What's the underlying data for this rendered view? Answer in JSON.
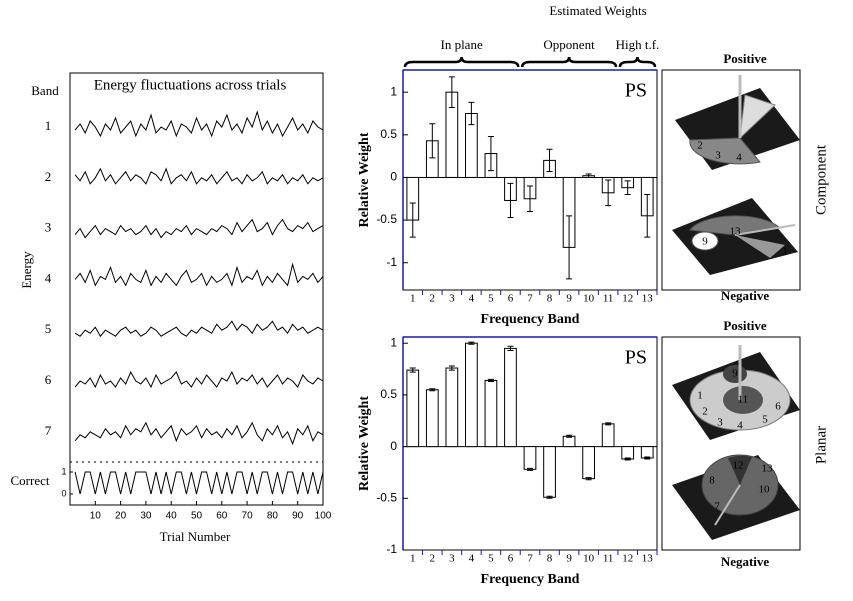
{
  "figure": {
    "title": "Estimated Weights",
    "panels": [
      {
        "side_label": "Component",
        "top_label": "Positive",
        "bottom_label": "Negative",
        "top_numbers": [
          "2",
          "3",
          "4"
        ],
        "bottom_numbers": [
          "9",
          "13",
          "1"
        ]
      },
      {
        "side_label": "Planar",
        "top_label": "Positive",
        "bottom_label": "Negative",
        "top_numbers": [
          "9",
          "11",
          "1",
          "2",
          "3",
          "4",
          "5",
          "6"
        ],
        "bottom_numbers": [
          "12",
          "13",
          "8",
          "10",
          "7"
        ]
      }
    ]
  },
  "chart_data": [
    {
      "type": "line",
      "title": "Energy fluctuations across trials",
      "band_label": "Band",
      "y_label": "Energy",
      "x_label": "Trial Number",
      "xlim": [
        0,
        100
      ],
      "xticks": [
        10,
        20,
        30,
        40,
        50,
        60,
        70,
        80,
        90,
        100
      ],
      "ylim": [
        0,
        10
      ],
      "x": [
        2,
        4,
        6,
        8,
        10,
        12,
        14,
        16,
        18,
        20,
        22,
        24,
        26,
        28,
        30,
        32,
        34,
        36,
        38,
        40,
        42,
        44,
        46,
        48,
        50,
        52,
        54,
        56,
        58,
        60,
        62,
        64,
        66,
        68,
        70,
        72,
        74,
        76,
        78,
        80,
        82,
        84,
        86,
        88,
        90,
        92,
        94,
        96,
        98,
        100
      ],
      "series": [
        {
          "name": "1",
          "color": "#000000",
          "values": [
            4,
            6,
            3,
            7,
            5,
            2,
            6,
            4,
            8,
            3,
            5,
            7,
            2,
            6,
            4,
            9,
            3,
            5,
            4,
            7,
            2,
            6,
            5,
            3,
            8,
            4,
            6,
            2,
            7,
            5,
            9,
            4,
            6,
            3,
            8,
            5,
            10,
            4,
            7,
            3,
            6,
            2,
            5,
            8,
            4,
            6,
            3,
            7,
            5,
            4
          ]
        },
        {
          "name": "2",
          "color": "#000000",
          "values": [
            6,
            4,
            7,
            3,
            5,
            8,
            4,
            6,
            3,
            5,
            7,
            4,
            6,
            5,
            3,
            7,
            6,
            4,
            8,
            3,
            5,
            6,
            4,
            7,
            3,
            5,
            4,
            6,
            3,
            5,
            7,
            4,
            5,
            3,
            6,
            4,
            5,
            7,
            3,
            5,
            4,
            6,
            3,
            5,
            4,
            6,
            3,
            5,
            4,
            5
          ]
        },
        {
          "name": "3",
          "color": "#000000",
          "values": [
            3,
            5,
            2,
            4,
            6,
            3,
            5,
            4,
            3,
            6,
            4,
            5,
            3,
            4,
            6,
            3,
            5,
            2,
            4,
            3,
            5,
            4,
            6,
            3,
            5,
            4,
            3,
            5,
            4,
            6,
            5,
            3,
            7,
            4,
            6,
            8,
            4,
            5,
            7,
            3,
            6,
            8,
            5,
            4,
            6,
            5,
            7,
            4,
            5,
            6
          ]
        },
        {
          "name": "4",
          "color": "#000000",
          "values": [
            5,
            7,
            4,
            8,
            3,
            6,
            5,
            9,
            4,
            6,
            3,
            7,
            5,
            4,
            8,
            3,
            6,
            4,
            7,
            5,
            3,
            6,
            8,
            4,
            5,
            7,
            3,
            6,
            4,
            5,
            7,
            3,
            9,
            4,
            6,
            5,
            8,
            3,
            6,
            4,
            7,
            5,
            3,
            10,
            4,
            6,
            5,
            7,
            4,
            6
          ]
        },
        {
          "name": "5",
          "color": "#000000",
          "values": [
            4,
            3,
            5,
            4,
            6,
            3,
            5,
            4,
            3,
            5,
            6,
            4,
            5,
            3,
            4,
            6,
            5,
            3,
            4,
            5,
            6,
            4,
            3,
            5,
            4,
            6,
            5,
            4,
            7,
            5,
            6,
            8,
            5,
            7,
            6,
            4,
            7,
            5,
            6,
            8,
            5,
            6,
            4,
            7,
            5,
            6,
            4,
            5,
            6,
            5
          ]
        },
        {
          "name": "6",
          "color": "#000000",
          "values": [
            3,
            5,
            4,
            6,
            3,
            7,
            4,
            5,
            3,
            6,
            4,
            8,
            5,
            4,
            6,
            3,
            7,
            4,
            5,
            6,
            8,
            4,
            5,
            3,
            6,
            4,
            7,
            5,
            3,
            6,
            5,
            8,
            4,
            6,
            5,
            7,
            4,
            6,
            3,
            5,
            7,
            4,
            6,
            5,
            3,
            7,
            5,
            4,
            6,
            5
          ]
        },
        {
          "name": "7",
          "color": "#000000",
          "values": [
            2,
            4,
            3,
            5,
            4,
            3,
            6,
            4,
            5,
            3,
            7,
            4,
            6,
            5,
            8,
            4,
            6,
            3,
            5,
            7,
            2,
            6,
            4,
            5,
            7,
            3,
            6,
            4,
            5,
            3,
            6,
            4,
            7,
            3,
            5,
            8,
            4,
            2,
            6,
            4,
            7,
            3,
            5,
            1,
            6,
            4,
            7,
            2,
            5,
            4
          ]
        }
      ],
      "correct": {
        "name": "Correct",
        "yticks": [
          0,
          1
        ],
        "values": [
          1,
          0,
          1,
          1,
          0,
          1,
          0,
          1,
          1,
          0,
          1,
          0,
          1,
          1,
          1,
          0,
          1,
          0,
          1,
          0,
          1,
          1,
          0,
          1,
          0,
          1,
          1,
          0,
          1,
          0,
          1,
          0,
          1,
          1,
          0,
          1,
          0,
          1,
          1,
          0,
          1,
          0,
          1,
          1,
          0,
          1,
          0,
          1,
          0,
          1
        ]
      }
    },
    {
      "type": "bar",
      "annotation": "PS",
      "y_label": "Relative Weight",
      "x_label": "Frequency Band",
      "color": "#ffffff",
      "categories": [
        "1",
        "2",
        "3",
        "4",
        "5",
        "6",
        "7",
        "8",
        "9",
        "10",
        "11",
        "12",
        "13"
      ],
      "values": [
        -0.5,
        0.43,
        1.0,
        0.75,
        0.28,
        -0.27,
        -0.25,
        0.2,
        -0.82,
        0.02,
        -0.18,
        -0.12,
        -0.45
      ],
      "errors": [
        0.2,
        0.2,
        0.18,
        0.13,
        0.2,
        0.2,
        0.15,
        0.13,
        0.37,
        0.02,
        0.15,
        0.08,
        0.25
      ],
      "ylim": [
        -1.32,
        1.26
      ],
      "yticks": [
        -1,
        -0.5,
        0,
        0.5,
        1
      ],
      "groups": [
        {
          "label": "In plane",
          "start": "1",
          "end": "6"
        },
        {
          "label": "Opponent",
          "start": "7",
          "end": "11"
        },
        {
          "label": "High t.f.",
          "start": "12",
          "end": "13"
        }
      ]
    },
    {
      "type": "bar",
      "annotation": "PS",
      "y_label": "Relative Weight",
      "x_label": "Frequency Band",
      "color": "#ffffff",
      "categories": [
        "1",
        "2",
        "3",
        "4",
        "5",
        "6",
        "7",
        "8",
        "9",
        "10",
        "11",
        "12",
        "13"
      ],
      "values": [
        0.74,
        0.55,
        0.76,
        1.0,
        0.64,
        0.95,
        -0.22,
        -0.49,
        0.1,
        -0.31,
        0.22,
        -0.12,
        -0.11
      ],
      "errors": [
        0.02,
        0.01,
        0.02,
        0.01,
        0.01,
        0.02,
        0.01,
        0.01,
        0.01,
        0.01,
        0.01,
        0.01,
        0.01
      ],
      "ylim": [
        -1,
        1.06
      ],
      "yticks": [
        -1,
        -0.5,
        0,
        0.5,
        1
      ]
    }
  ]
}
